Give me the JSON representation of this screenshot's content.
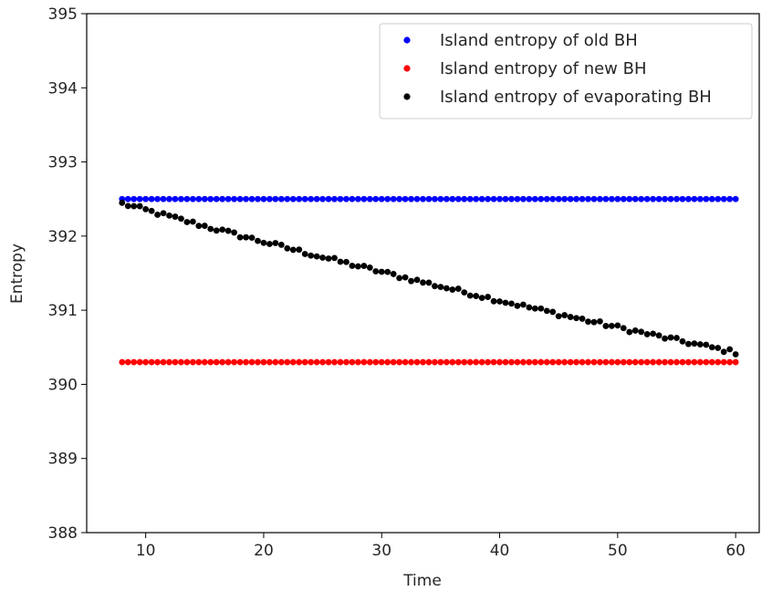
{
  "chart_data": {
    "type": "scatter",
    "title": "",
    "xlabel": "Time",
    "ylabel": "Entropy",
    "xlim": [
      5,
      62
    ],
    "ylim": [
      388,
      395
    ],
    "xticks": [
      10,
      20,
      30,
      40,
      50,
      60
    ],
    "yticks": [
      388,
      389,
      390,
      391,
      392,
      393,
      394,
      395
    ],
    "grid": false,
    "legend_position": "top-right",
    "series": [
      {
        "name": "Island entropy of old BH",
        "color": "#0000ff",
        "x_range": [
          8,
          60
        ],
        "x_step": 0.5,
        "value": 392.5
      },
      {
        "name": "Island entropy of new BH",
        "color": "#ff0000",
        "x_range": [
          8,
          60
        ],
        "x_step": 0.5,
        "value": 390.3
      },
      {
        "name": "Island entropy of evaporating BH",
        "color": "#000000",
        "x_range": [
          8,
          60
        ],
        "x_step": 0.5,
        "start_value": 392.44,
        "end_value": 390.43,
        "noise": 0.03
      }
    ]
  }
}
